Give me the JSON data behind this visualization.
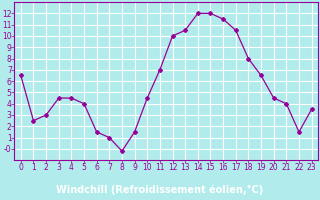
{
  "x": [
    0,
    1,
    2,
    3,
    4,
    5,
    6,
    7,
    8,
    9,
    10,
    11,
    12,
    13,
    14,
    15,
    16,
    17,
    18,
    19,
    20,
    21,
    22,
    23
  ],
  "y": [
    6.5,
    2.5,
    3.0,
    4.5,
    4.5,
    4.0,
    1.5,
    1.0,
    -0.2,
    1.5,
    4.5,
    7.0,
    10.0,
    10.5,
    12.0,
    12.0,
    11.5,
    10.5,
    8.0,
    6.5,
    4.5,
    4.0,
    1.5,
    3.5
  ],
  "line_color": "#990099",
  "marker": "D",
  "marker_size": 2,
  "bg_color": "#b2ebeb",
  "grid_color": "#ffffff",
  "xlabel": "Windchill (Refroidissement éolien,°C)",
  "title": "",
  "ylim": [
    -1,
    13
  ],
  "xlim": [
    -0.5,
    23.5
  ],
  "yticks": [
    0,
    1,
    2,
    3,
    4,
    5,
    6,
    7,
    8,
    9,
    10,
    11,
    12
  ],
  "xticks": [
    0,
    1,
    2,
    3,
    4,
    5,
    6,
    7,
    8,
    9,
    10,
    11,
    12,
    13,
    14,
    15,
    16,
    17,
    18,
    19,
    20,
    21,
    22,
    23
  ],
  "tick_label_color": "#990099",
  "tick_label_size": 5.5,
  "xlabel_fontsize": 7.0,
  "xlabel_color": "#990099",
  "spine_color": "#990099",
  "bottom_bar_color": "#6600aa"
}
